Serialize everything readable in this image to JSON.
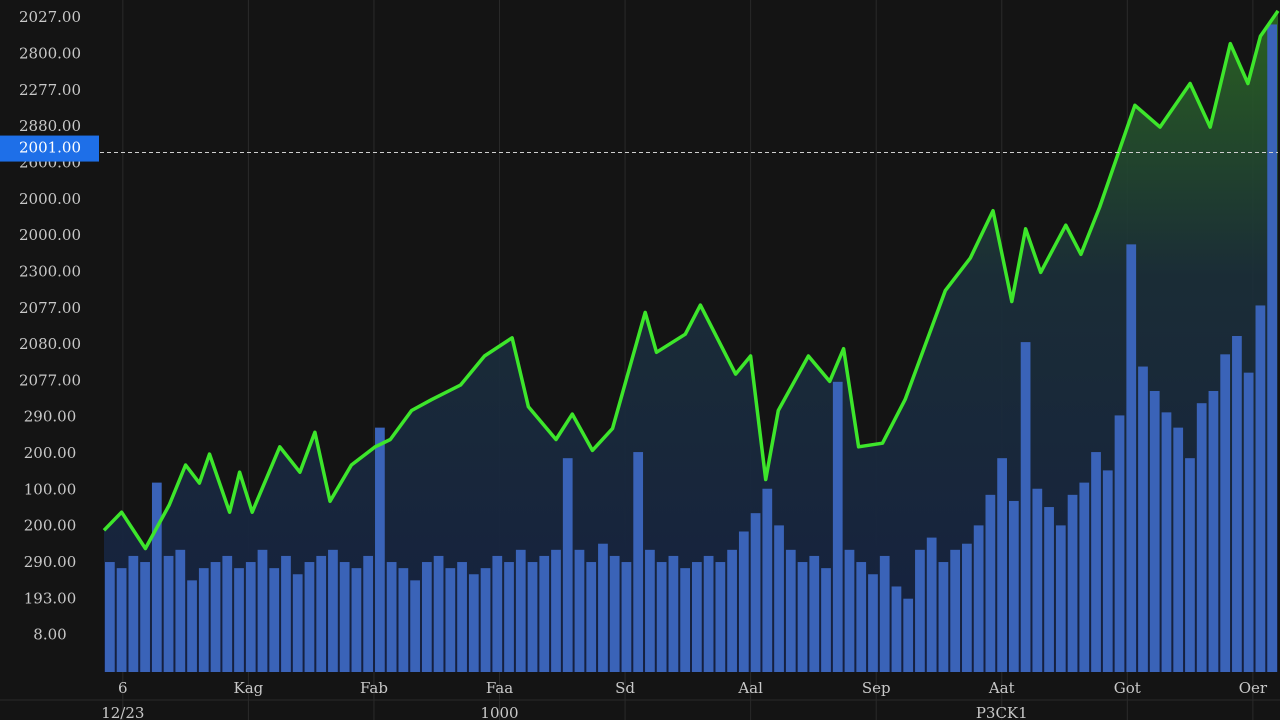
{
  "chart_data": {
    "type": "line",
    "x": [
      -0.15,
      -0.01,
      0.18,
      0.37,
      0.5,
      0.61,
      0.69,
      0.85,
      0.93,
      1.03,
      1.25,
      1.41,
      1.53,
      1.65,
      1.82,
      2.01,
      2.13,
      2.3,
      2.46,
      2.69,
      2.88,
      3.1,
      3.23,
      3.45,
      3.58,
      3.74,
      3.9,
      4.16,
      4.25,
      4.48,
      4.6,
      4.88,
      5.0,
      5.12,
      5.22,
      5.46,
      5.63,
      5.74,
      5.86,
      6.05,
      6.23,
      6.55,
      6.75,
      6.93,
      7.08,
      7.19,
      7.31,
      7.51,
      7.63,
      7.78,
      8.06,
      8.26,
      8.5,
      8.66,
      8.82,
      8.96,
      9.06,
      9.2
    ],
    "series": [
      {
        "color": "#3de62b",
        "values": [
          2.9,
          3.4,
          2.4,
          3.6,
          4.7,
          4.2,
          5.0,
          3.4,
          4.5,
          3.4,
          5.2,
          4.5,
          5.6,
          3.7,
          4.7,
          5.2,
          5.4,
          6.2,
          6.5,
          6.9,
          7.7,
          8.2,
          6.3,
          5.4,
          6.1,
          5.1,
          5.7,
          8.9,
          7.8,
          8.3,
          9.1,
          7.2,
          7.7,
          4.3,
          6.2,
          7.7,
          7.0,
          7.9,
          5.2,
          5.3,
          6.5,
          9.5,
          10.4,
          11.7,
          9.2,
          11.2,
          10.0,
          11.3,
          10.5,
          11.8,
          14.6,
          14.0,
          15.2,
          14.0,
          16.3,
          15.2,
          16.5,
          17.2
        ]
      }
    ],
    "volume": {
      "color": "#3a63b8",
      "axis": "y2",
      "values": [
        36,
        34,
        38,
        36,
        62,
        38,
        40,
        30,
        34,
        36,
        38,
        34,
        36,
        40,
        34,
        38,
        32,
        36,
        38,
        40,
        36,
        34,
        38,
        80,
        36,
        34,
        30,
        36,
        38,
        34,
        36,
        32,
        34,
        38,
        36,
        40,
        36,
        38,
        40,
        70,
        40,
        36,
        42,
        38,
        36,
        72,
        40,
        36,
        38,
        34,
        36,
        38,
        36,
        40,
        46,
        52,
        60,
        48,
        40,
        36,
        38,
        34,
        95,
        40,
        36,
        32,
        38,
        28,
        24,
        40,
        44,
        36,
        40,
        42,
        48,
        58,
        70,
        56,
        108,
        60,
        54,
        48,
        58,
        62,
        72,
        66,
        84,
        140,
        100,
        92,
        85,
        80,
        70,
        88,
        92,
        104,
        110,
        98,
        120,
        212
      ]
    },
    "xlim": [
      -0.15,
      9.2
    ],
    "ylim": [
      -1,
      17.5
    ],
    "y2lim": [
      0,
      220
    ],
    "xticks": [
      {
        "value": 0,
        "label": "6"
      },
      {
        "value": 1,
        "label": "Kag"
      },
      {
        "value": 2,
        "label": "Fab"
      },
      {
        "value": 3,
        "label": "Faa"
      },
      {
        "value": 4,
        "label": "Sd"
      },
      {
        "value": 5,
        "label": "Aal"
      },
      {
        "value": 6,
        "label": "Sep"
      },
      {
        "value": 7,
        "label": "Aat"
      },
      {
        "value": 8,
        "label": "Got"
      },
      {
        "value": 9,
        "label": "Oer"
      }
    ],
    "x_sublabels": [
      {
        "value": 0,
        "label": "12/23"
      },
      {
        "value": 3,
        "label": "1000"
      },
      {
        "value": 7,
        "label": "P3CK1"
      }
    ],
    "yticks": [
      {
        "value": 0,
        "label": "8.00"
      },
      {
        "value": 1,
        "label": "193.00"
      },
      {
        "value": 2,
        "label": "290.00"
      },
      {
        "value": 3,
        "label": "200.00"
      },
      {
        "value": 4,
        "label": "100.00"
      },
      {
        "value": 5,
        "label": "200.00"
      },
      {
        "value": 6,
        "label": "290.00"
      },
      {
        "value": 7,
        "label": "2077.00"
      },
      {
        "value": 8,
        "label": "2080.00"
      },
      {
        "value": 9,
        "label": "2077.00"
      },
      {
        "value": 10,
        "label": "2300.00"
      },
      {
        "value": 11,
        "label": "2000.00"
      },
      {
        "value": 12,
        "label": "2000.00"
      },
      {
        "value": 13,
        "label": "2600.00"
      },
      {
        "value": 14,
        "label": "2880.00"
      },
      {
        "value": 15,
        "label": "2277.00"
      },
      {
        "value": 16,
        "label": "2800.00"
      },
      {
        "value": 17,
        "label": "2027.00"
      }
    ],
    "marker_level": 13.3,
    "marker_label": "2001.00",
    "grid": "x"
  }
}
